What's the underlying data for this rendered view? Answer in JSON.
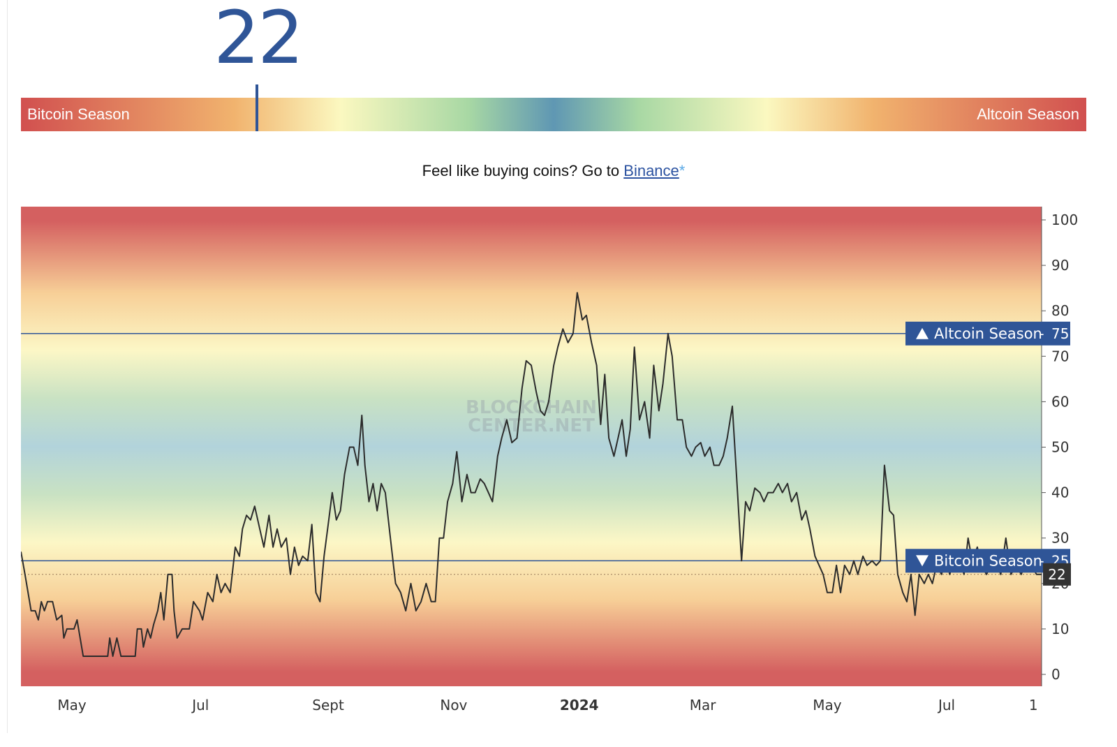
{
  "index": {
    "value": "22",
    "left_label": "Bitcoin Season",
    "right_label": "Altcoin Season",
    "position_fraction": 0.222
  },
  "promo": {
    "text": "Feel like buying coins? Go to ",
    "link": "Binance",
    "suffix": "*"
  },
  "watermark": {
    "line1": "BLOCKCHAIN",
    "line2": "CENTER.NET"
  },
  "colors": {
    "accent": "#2f5597",
    "bitcoin_season": "#d1504f",
    "altcoin_season": "#d1504f",
    "line": "#2b2b2b",
    "current_badge": "#333333"
  },
  "chart_data": {
    "type": "line",
    "ylim": [
      0,
      100
    ],
    "yticks": [
      "0",
      "10",
      "20",
      "30",
      "40",
      "50",
      "60",
      "70",
      "80",
      "90",
      "100"
    ],
    "xticks": [
      {
        "label": "May",
        "t": 0.05
      },
      {
        "label": "Jul",
        "t": 0.176
      },
      {
        "label": "Sept",
        "t": 0.301
      },
      {
        "label": "Nov",
        "t": 0.424
      },
      {
        "label": "2024",
        "t": 0.547,
        "bold": true
      },
      {
        "label": "Mar",
        "t": 0.668
      },
      {
        "label": "May",
        "t": 0.79
      },
      {
        "label": "Jul",
        "t": 0.907
      },
      {
        "label": "1",
        "t": 0.992
      }
    ],
    "thresholds": [
      {
        "label": "Altcoin Season",
        "value": 75,
        "direction": "up"
      },
      {
        "label": "Bitcoin Season",
        "value": 25,
        "direction": "down"
      }
    ],
    "current": 22,
    "series": [
      {
        "values": [
          [
            0.0,
            27
          ],
          [
            0.004,
            22
          ],
          [
            0.01,
            14
          ],
          [
            0.014,
            14
          ],
          [
            0.017,
            12
          ],
          [
            0.02,
            16
          ],
          [
            0.023,
            14
          ],
          [
            0.026,
            16
          ],
          [
            0.031,
            16
          ],
          [
            0.035,
            12
          ],
          [
            0.04,
            13
          ],
          [
            0.042,
            8
          ],
          [
            0.045,
            10
          ],
          [
            0.052,
            10
          ],
          [
            0.055,
            12
          ],
          [
            0.058,
            8
          ],
          [
            0.061,
            4
          ],
          [
            0.085,
            4
          ],
          [
            0.087,
            8
          ],
          [
            0.09,
            4
          ],
          [
            0.094,
            8
          ],
          [
            0.098,
            4
          ],
          [
            0.112,
            4
          ],
          [
            0.114,
            10
          ],
          [
            0.118,
            10
          ],
          [
            0.12,
            6
          ],
          [
            0.124,
            10
          ],
          [
            0.127,
            8
          ],
          [
            0.13,
            11
          ],
          [
            0.134,
            14
          ],
          [
            0.137,
            18
          ],
          [
            0.14,
            12
          ],
          [
            0.144,
            22
          ],
          [
            0.148,
            22
          ],
          [
            0.15,
            14
          ],
          [
            0.153,
            8
          ],
          [
            0.158,
            10
          ],
          [
            0.165,
            10
          ],
          [
            0.169,
            16
          ],
          [
            0.175,
            14
          ],
          [
            0.178,
            12
          ],
          [
            0.183,
            18
          ],
          [
            0.188,
            16
          ],
          [
            0.192,
            22
          ],
          [
            0.196,
            18
          ],
          [
            0.2,
            20
          ],
          [
            0.205,
            18
          ],
          [
            0.21,
            28
          ],
          [
            0.214,
            26
          ],
          [
            0.217,
            32
          ],
          [
            0.221,
            35
          ],
          [
            0.225,
            34
          ],
          [
            0.229,
            37
          ],
          [
            0.234,
            32
          ],
          [
            0.238,
            28
          ],
          [
            0.243,
            35
          ],
          [
            0.247,
            28
          ],
          [
            0.251,
            32
          ],
          [
            0.255,
            28
          ],
          [
            0.26,
            30
          ],
          [
            0.264,
            22
          ],
          [
            0.268,
            28
          ],
          [
            0.272,
            24
          ],
          [
            0.276,
            26
          ],
          [
            0.281,
            25
          ],
          [
            0.285,
            33
          ],
          [
            0.289,
            18
          ],
          [
            0.293,
            16
          ],
          [
            0.297,
            26
          ],
          [
            0.301,
            33
          ],
          [
            0.305,
            40
          ],
          [
            0.309,
            34
          ],
          [
            0.313,
            36
          ],
          [
            0.317,
            44
          ],
          [
            0.322,
            50
          ],
          [
            0.326,
            50
          ],
          [
            0.33,
            46
          ],
          [
            0.334,
            57
          ],
          [
            0.337,
            46
          ],
          [
            0.341,
            38
          ],
          [
            0.345,
            42
          ],
          [
            0.349,
            36
          ],
          [
            0.353,
            42
          ],
          [
            0.357,
            40
          ],
          [
            0.362,
            30
          ],
          [
            0.367,
            20
          ],
          [
            0.372,
            18
          ],
          [
            0.377,
            14
          ],
          [
            0.382,
            20
          ],
          [
            0.387,
            14
          ],
          [
            0.392,
            16
          ],
          [
            0.397,
            20
          ],
          [
            0.402,
            16
          ],
          [
            0.406,
            16
          ],
          [
            0.41,
            30
          ],
          [
            0.414,
            30
          ],
          [
            0.418,
            38
          ],
          [
            0.423,
            42
          ],
          [
            0.427,
            49
          ],
          [
            0.432,
            38
          ],
          [
            0.437,
            44
          ],
          [
            0.441,
            40
          ],
          [
            0.445,
            40
          ],
          [
            0.45,
            43
          ],
          [
            0.454,
            42
          ],
          [
            0.458,
            40
          ],
          [
            0.462,
            38
          ],
          [
            0.467,
            48
          ],
          [
            0.471,
            52
          ],
          [
            0.476,
            56
          ],
          [
            0.481,
            51
          ],
          [
            0.486,
            52
          ],
          [
            0.491,
            63
          ],
          [
            0.495,
            69
          ],
          [
            0.5,
            68
          ],
          [
            0.505,
            62
          ],
          [
            0.509,
            58
          ],
          [
            0.513,
            57
          ],
          [
            0.517,
            60
          ],
          [
            0.522,
            68
          ],
          [
            0.526,
            72
          ],
          [
            0.531,
            76
          ],
          [
            0.536,
            73
          ],
          [
            0.541,
            75
          ],
          [
            0.545,
            84
          ],
          [
            0.55,
            78
          ],
          [
            0.554,
            79
          ],
          [
            0.559,
            73
          ],
          [
            0.564,
            68
          ],
          [
            0.568,
            55
          ],
          [
            0.572,
            66
          ],
          [
            0.576,
            52
          ],
          [
            0.581,
            48
          ],
          [
            0.585,
            52
          ],
          [
            0.589,
            56
          ],
          [
            0.593,
            48
          ],
          [
            0.597,
            54
          ],
          [
            0.601,
            72
          ],
          [
            0.606,
            56
          ],
          [
            0.611,
            60
          ],
          [
            0.616,
            52
          ],
          [
            0.62,
            68
          ],
          [
            0.625,
            58
          ],
          [
            0.629,
            64
          ],
          [
            0.634,
            75
          ],
          [
            0.638,
            70
          ],
          [
            0.643,
            56
          ],
          [
            0.648,
            56
          ],
          [
            0.652,
            50
          ],
          [
            0.657,
            48
          ],
          [
            0.661,
            50
          ],
          [
            0.666,
            51
          ],
          [
            0.67,
            48
          ],
          [
            0.675,
            50
          ],
          [
            0.679,
            46
          ],
          [
            0.684,
            46
          ],
          [
            0.688,
            48
          ],
          [
            0.692,
            52
          ],
          [
            0.697,
            59
          ],
          [
            0.701,
            44
          ],
          [
            0.706,
            25
          ],
          [
            0.71,
            38
          ],
          [
            0.714,
            36
          ],
          [
            0.719,
            41
          ],
          [
            0.724,
            40
          ],
          [
            0.728,
            38
          ],
          [
            0.732,
            40
          ],
          [
            0.737,
            40
          ],
          [
            0.742,
            42
          ],
          [
            0.746,
            40
          ],
          [
            0.751,
            42
          ],
          [
            0.755,
            38
          ],
          [
            0.76,
            40
          ],
          [
            0.765,
            34
          ],
          [
            0.769,
            36
          ],
          [
            0.773,
            32
          ],
          [
            0.778,
            26
          ],
          [
            0.782,
            24
          ],
          [
            0.786,
            22
          ],
          [
            0.79,
            18
          ],
          [
            0.795,
            18
          ],
          [
            0.799,
            24
          ],
          [
            0.803,
            18
          ],
          [
            0.807,
            24
          ],
          [
            0.812,
            22
          ],
          [
            0.816,
            25
          ],
          [
            0.82,
            22
          ],
          [
            0.825,
            26
          ],
          [
            0.829,
            24
          ],
          [
            0.834,
            25
          ],
          [
            0.838,
            24
          ],
          [
            0.842,
            25
          ],
          [
            0.846,
            46
          ],
          [
            0.851,
            36
          ],
          [
            0.855,
            35
          ],
          [
            0.859,
            22
          ],
          [
            0.864,
            18
          ],
          [
            0.868,
            16
          ],
          [
            0.872,
            22
          ],
          [
            0.876,
            13
          ],
          [
            0.88,
            22
          ],
          [
            0.885,
            20
          ],
          [
            0.889,
            22
          ],
          [
            0.893,
            20
          ],
          [
            0.897,
            24
          ],
          [
            0.902,
            22
          ],
          [
            0.906,
            26
          ],
          [
            0.91,
            22
          ],
          [
            0.915,
            26
          ],
          [
            0.92,
            25
          ],
          [
            0.924,
            22
          ],
          [
            0.928,
            30
          ],
          [
            0.932,
            25
          ],
          [
            0.937,
            28
          ],
          [
            0.941,
            24
          ],
          [
            0.946,
            22
          ],
          [
            0.95,
            24
          ],
          [
            0.955,
            25
          ],
          [
            0.96,
            22
          ],
          [
            0.965,
            30
          ],
          [
            0.97,
            22
          ],
          [
            0.975,
            24
          ],
          [
            0.98,
            22
          ],
          [
            0.985,
            25
          ],
          [
            0.99,
            24
          ],
          [
            0.995,
            22
          ],
          [
            1.0,
            22
          ]
        ]
      }
    ]
  }
}
